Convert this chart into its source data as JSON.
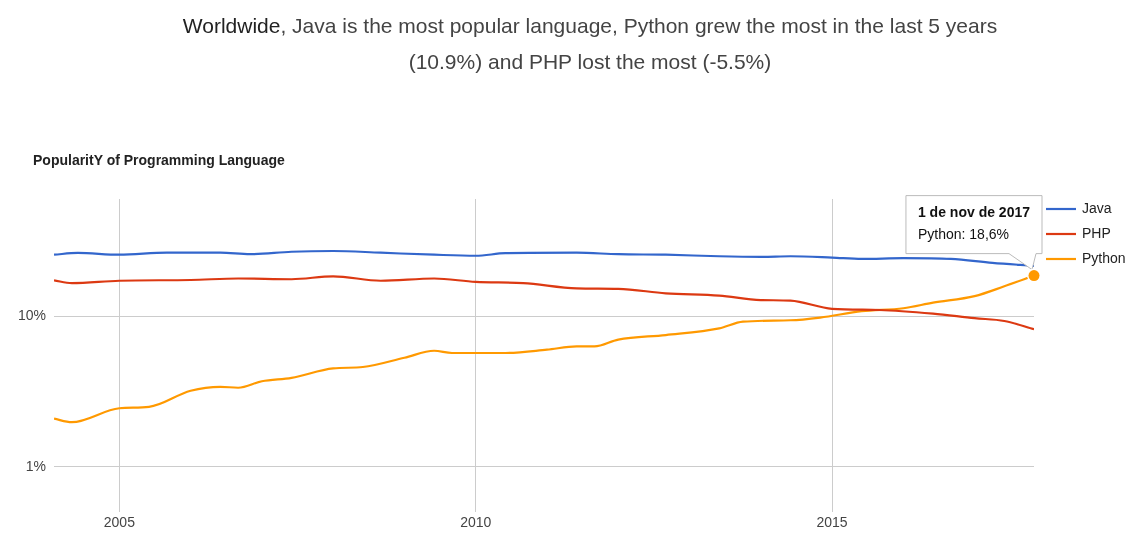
{
  "chart_data": {
    "type": "line",
    "title": "Worldwide, Java is the most popular language, Python grew the most in the last 5 years (10.9%) and PHP lost the most (-5.5%)",
    "subtitle": "PopularitY of Programming Language",
    "log": "y",
    "grid": true,
    "legend": "right",
    "marker": "none",
    "line_style": "solid",
    "xlim": [
      "2004-02",
      "2017-11"
    ],
    "xticks": [
      "2005",
      "2010",
      "2015"
    ],
    "ylim": [
      0.5,
      60
    ],
    "yticks": [
      {
        "value": 1,
        "label": "1%"
      },
      {
        "value": 10,
        "label": "10%"
      }
    ],
    "annotations": [
      {
        "text": "1 de nov de 2017\nPython: 18,6%",
        "x": "2017-11",
        "y": 18.6
      }
    ],
    "series": [
      {
        "name": "Java",
        "color": "#3366cc",
        "x": [
          "2004-02",
          "2004-06",
          "2005-01",
          "2005-09",
          "2006-06",
          "2006-11",
          "2007-06",
          "2008-01",
          "2008-09",
          "2009-06",
          "2010-01",
          "2010-06",
          "2011-06",
          "2012-01",
          "2012-09",
          "2013-06",
          "2014-01",
          "2014-06",
          "2015-01",
          "2015-06",
          "2016-01",
          "2016-09",
          "2017-04",
          "2017-11"
        ],
        "values": [
          25.6,
          26.3,
          25.6,
          26.4,
          26.4,
          25.8,
          26.8,
          27.1,
          26.4,
          25.6,
          25.2,
          26.2,
          26.4,
          25.8,
          25.6,
          25.0,
          24.8,
          25.0,
          24.5,
          24.0,
          24.3,
          24.0,
          22.6,
          21.6
        ]
      },
      {
        "name": "PHP",
        "color": "#dc3912",
        "x": [
          "2004-02",
          "2004-05",
          "2005-01",
          "2006-01",
          "2006-09",
          "2007-06",
          "2008-01",
          "2008-09",
          "2009-06",
          "2010-01",
          "2010-09",
          "2011-06",
          "2012-01",
          "2012-09",
          "2013-06",
          "2014-01",
          "2014-06",
          "2015-01",
          "2015-09",
          "2016-06",
          "2017-01",
          "2017-06",
          "2017-11"
        ],
        "values": [
          17.3,
          16.6,
          17.2,
          17.4,
          17.8,
          17.6,
          18.4,
          17.2,
          17.8,
          16.9,
          16.6,
          15.3,
          15.2,
          14.2,
          13.7,
          12.8,
          12.7,
          11.2,
          11.0,
          10.4,
          9.7,
          9.3,
          8.2
        ]
      },
      {
        "name": "Python",
        "color": "#ff9900",
        "x": [
          "2004-02",
          "2004-05",
          "2005-01",
          "2005-06",
          "2006-01",
          "2006-06",
          "2006-09",
          "2007-01",
          "2007-06",
          "2008-01",
          "2008-06",
          "2009-01",
          "2009-06",
          "2009-09",
          "2010-06",
          "2011-01",
          "2011-06",
          "2011-09",
          "2012-01",
          "2012-09",
          "2013-06",
          "2013-10",
          "2014-06",
          "2014-11",
          "2015-06",
          "2016-01",
          "2016-06",
          "2017-01",
          "2017-06",
          "2017-11"
        ],
        "values": [
          2.09,
          1.98,
          2.45,
          2.5,
          3.2,
          3.4,
          3.35,
          3.7,
          3.9,
          4.5,
          4.6,
          5.3,
          5.9,
          5.7,
          5.7,
          6.0,
          6.3,
          6.3,
          7.0,
          7.5,
          8.3,
          9.2,
          9.4,
          9.8,
          10.8,
          11.3,
          12.3,
          13.6,
          15.8,
          18.6
        ]
      }
    ]
  }
}
